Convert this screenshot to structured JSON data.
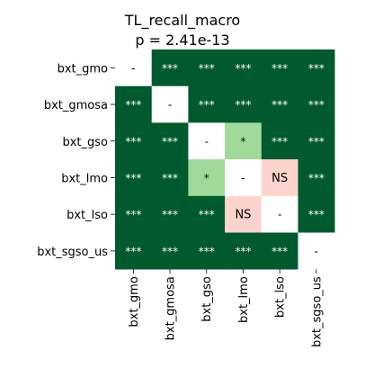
{
  "chart_data": {
    "type": "heatmap",
    "title": "TL_recall_macro",
    "subtitle": "p = 2.41e-13",
    "labels": [
      "bxt_gmo",
      "bxt_gmosa",
      "bxt_gso",
      "bxt_lmo",
      "bxt_lso",
      "bxt_sgso_us"
    ],
    "cells": [
      [
        "-",
        "***",
        "***",
        "***",
        "***",
        "***"
      ],
      [
        "***",
        "-",
        "***",
        "***",
        "***",
        "***"
      ],
      [
        "***",
        "***",
        "-",
        "*",
        "***",
        "***"
      ],
      [
        "***",
        "***",
        "*",
        "-",
        "NS",
        "***"
      ],
      [
        "***",
        "***",
        "***",
        "NS",
        "-",
        "***"
      ],
      [
        "***",
        "***",
        "***",
        "***",
        "***",
        "-"
      ]
    ],
    "colors": {
      "***": "#005a2d",
      "*": "#a1d99b",
      "NS": "#fdd4cd",
      "-": "#ffffff"
    },
    "text_colors": {
      "***": "#ffffff",
      "*": "#000000",
      "NS": "#000000",
      "-": "#000000"
    },
    "grid": false,
    "legend": "none"
  }
}
